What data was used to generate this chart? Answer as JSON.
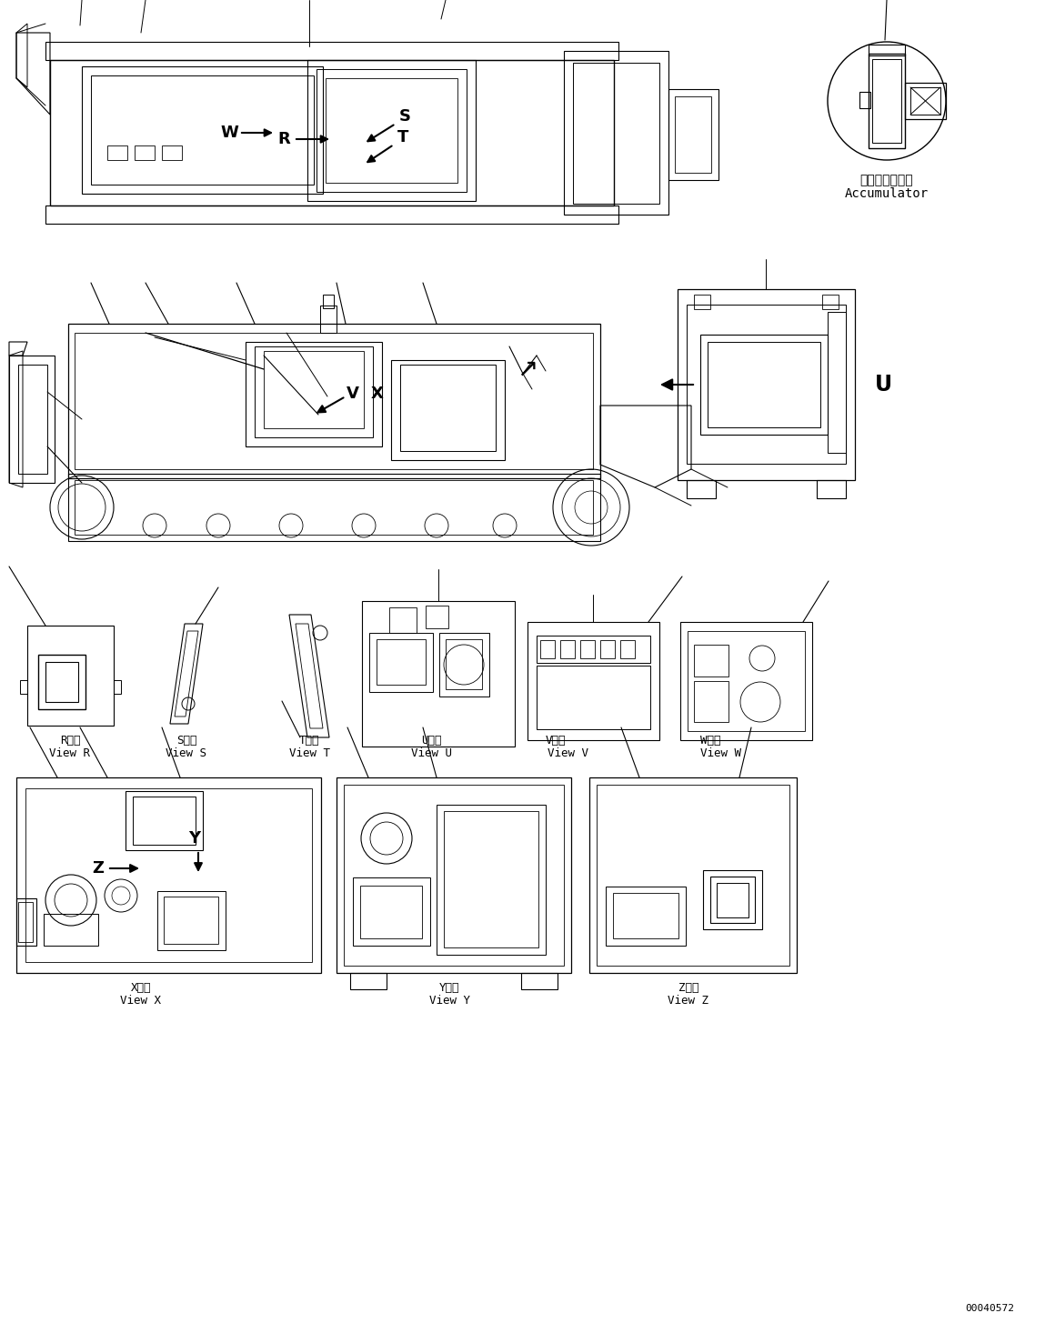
{
  "background_color": "#ffffff",
  "line_color": "#000000",
  "figsize": [
    11.49,
    14.66
  ],
  "dpi": 100,
  "part_number": "00040572",
  "accumulator_label_jp": "アキュムレータ",
  "accumulator_label_en": "Accumulator",
  "view_labels_jp": {
    "R": "R　視",
    "S": "S　視",
    "T": "T　視",
    "U": "U　視",
    "V": "V　視",
    "W": "W　視",
    "X": "X　視",
    "Y": "Y　視",
    "Z": "Z　視"
  },
  "view_labels_en": {
    "R": "View R",
    "S": "View S",
    "T": "View T",
    "U": "View U",
    "V": "View V",
    "W": "View W",
    "X": "View X",
    "Y": "View Y",
    "Z": "View Z"
  }
}
